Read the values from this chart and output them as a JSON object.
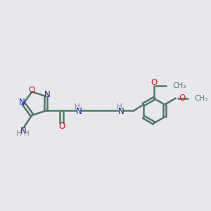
{
  "background_color": "#e8e8ec",
  "bond_color": "#4a7a6a",
  "bond_width": 1.8,
  "n_color": "#1818cc",
  "o_color": "#cc1818",
  "h_color": "#888888",
  "figsize": [
    3.0,
    3.0
  ],
  "dpi": 100,
  "xlim": [
    0,
    10
  ],
  "ylim": [
    2,
    8
  ]
}
